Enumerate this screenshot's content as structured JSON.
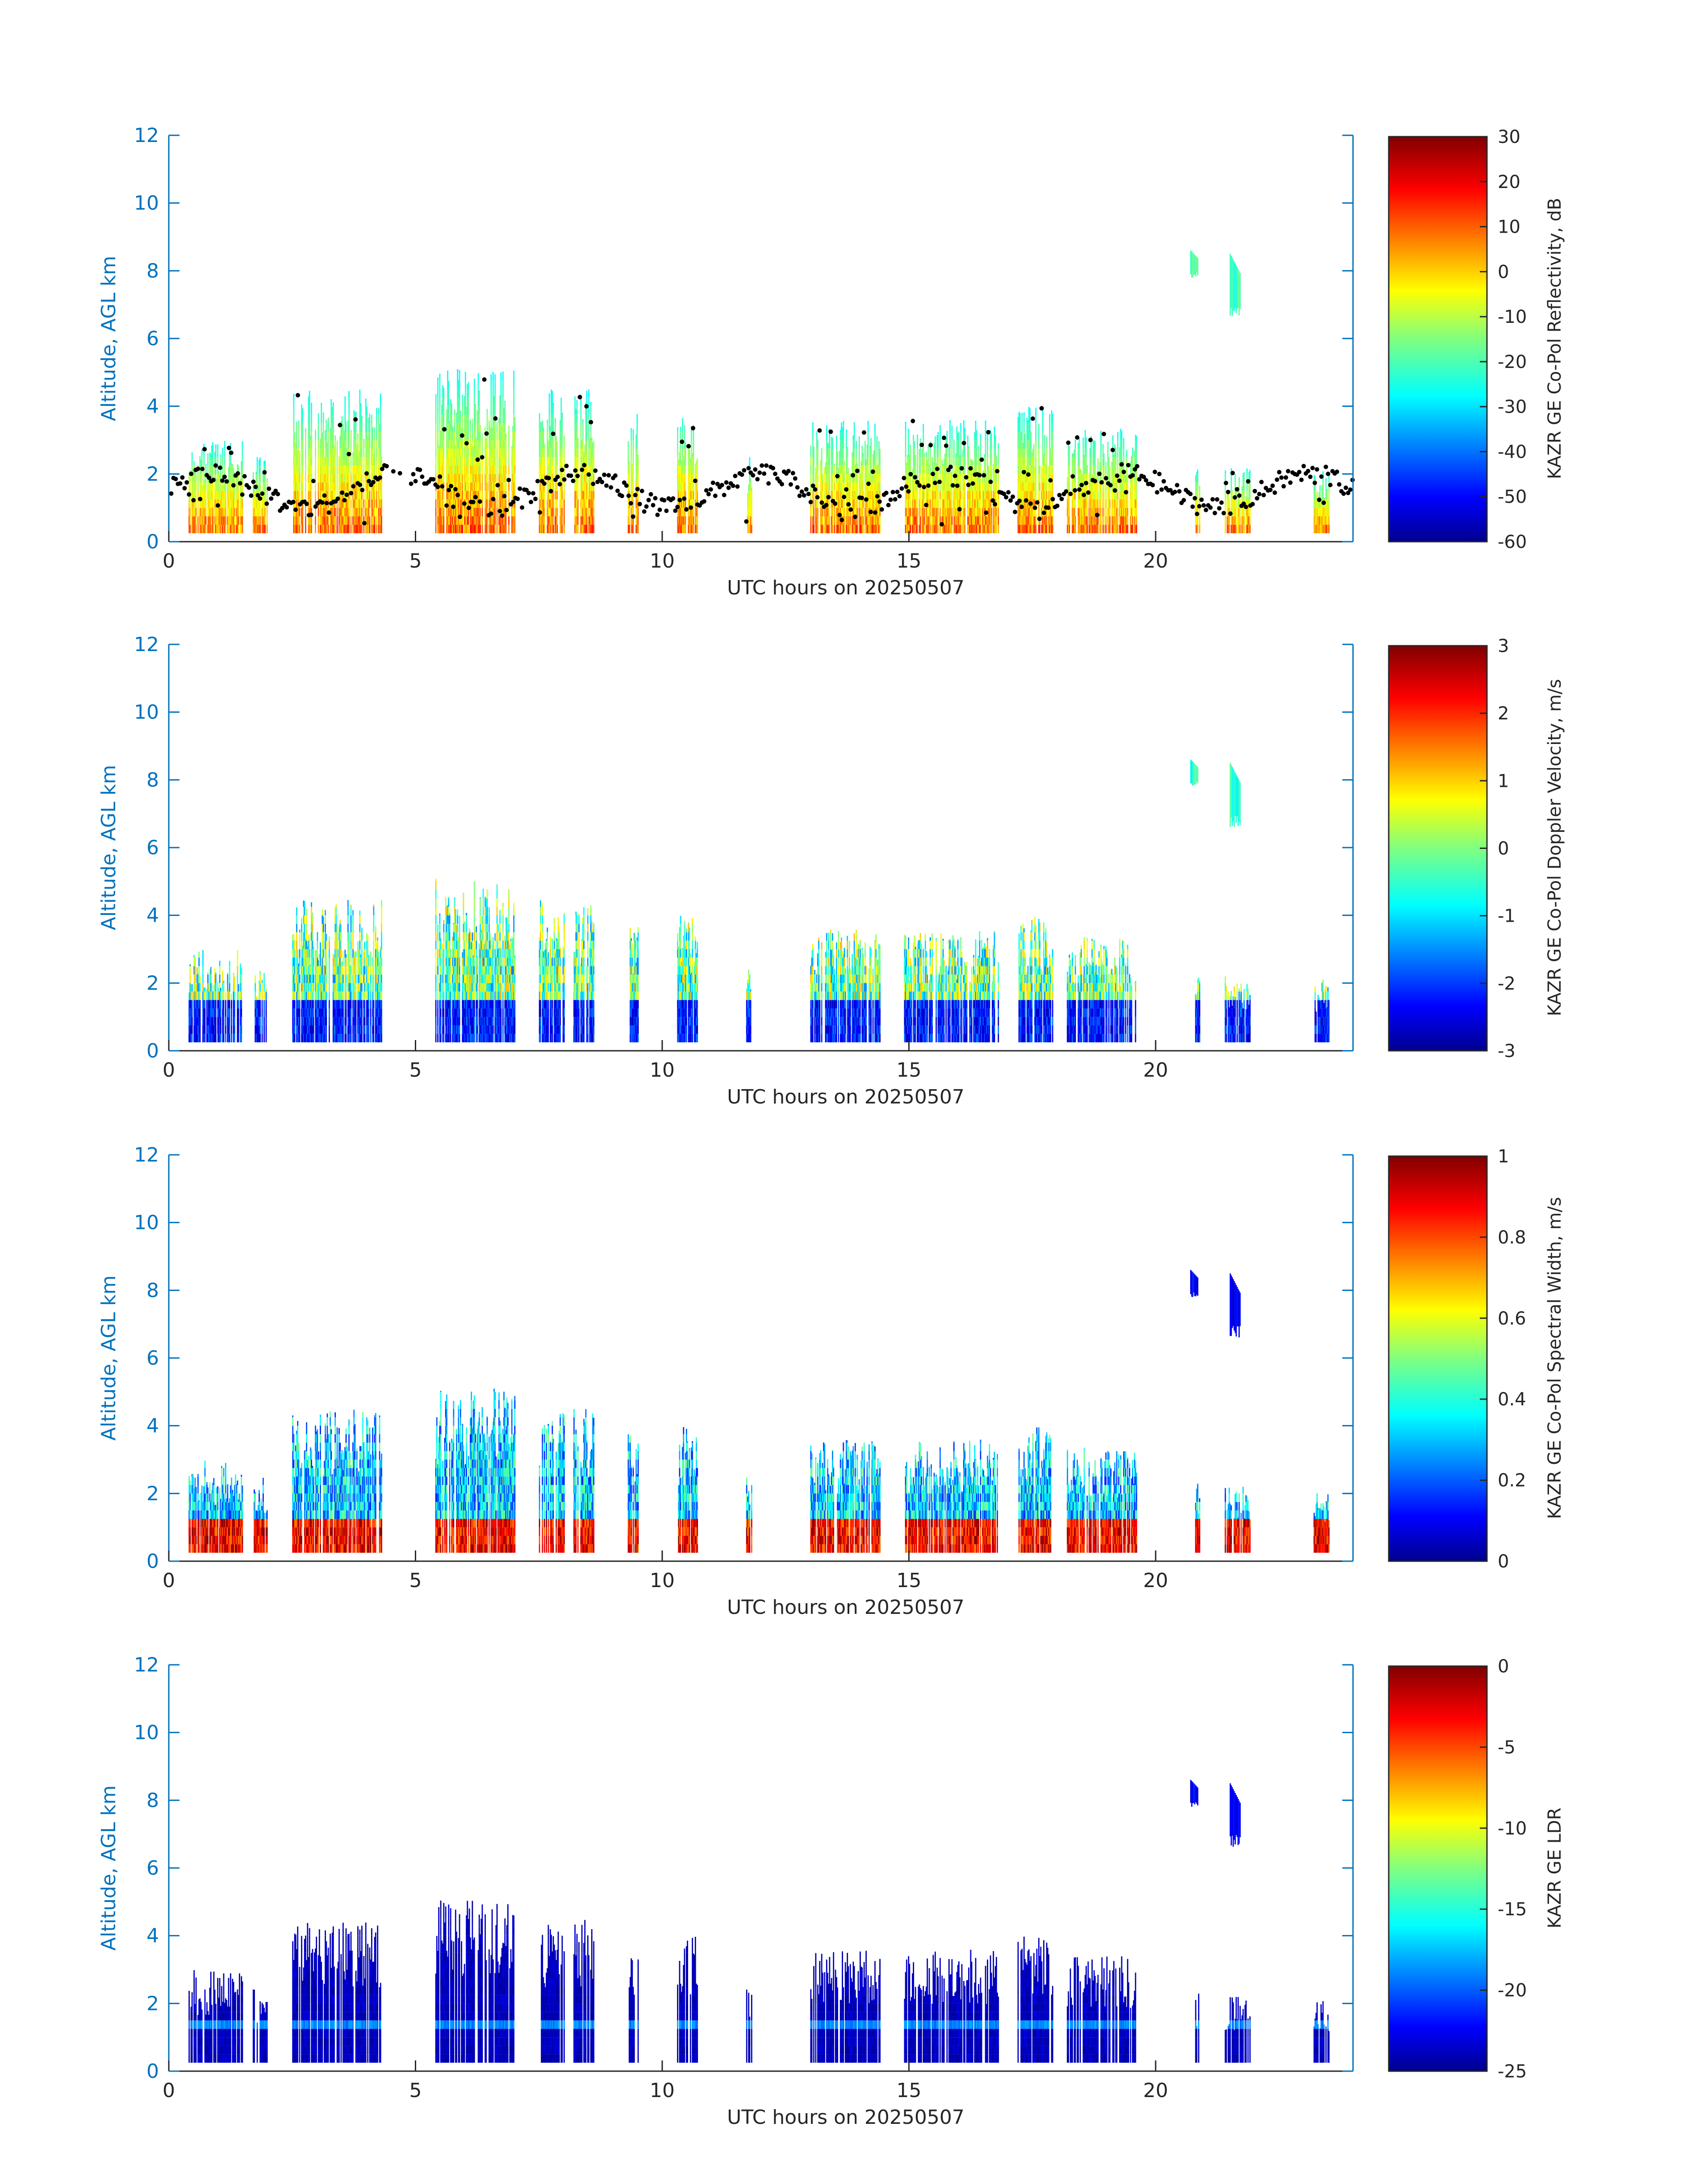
{
  "chart_data": [
    {
      "type": "heatmap",
      "title": "",
      "xlabel": "UTC hours on 20250507",
      "ylabel": "Altitude, AGL km",
      "xlim": [
        0,
        24
      ],
      "ylim": [
        0,
        12
      ],
      "xticks": [
        "0",
        "5",
        "10",
        "15",
        "20"
      ],
      "yticks": [
        "0",
        "2",
        "4",
        "6",
        "8",
        "10",
        "12"
      ],
      "colorbar": {
        "label": "KAZR GE Co-Pol Reflectivity, dB",
        "range": [
          -60,
          30
        ],
        "ticks": [
          "30",
          "20",
          "10",
          "0",
          "-10",
          "-20",
          "-30",
          "-40",
          "-50",
          "-60"
        ],
        "colormap": "jet"
      },
      "overlay": {
        "type": "scatter",
        "color": "#000000",
        "description_visible": "black dots (cloud base)"
      },
      "cloud_columns": [
        {
          "x0": 0.4,
          "x1": 1.5,
          "top": 3.0
        },
        {
          "x0": 1.7,
          "x1": 2.0,
          "top": 2.5
        },
        {
          "x0": 2.5,
          "x1": 4.3,
          "top": 4.5
        },
        {
          "x0": 5.4,
          "x1": 7.0,
          "top": 5.1
        },
        {
          "x0": 7.5,
          "x1": 8.0,
          "top": 4.5
        },
        {
          "x0": 8.2,
          "x1": 8.6,
          "top": 4.5
        },
        {
          "x0": 9.3,
          "x1": 9.5,
          "top": 3.8
        },
        {
          "x0": 10.3,
          "x1": 10.7,
          "top": 4.0
        },
        {
          "x0": 11.7,
          "x1": 11.8,
          "top": 2.5
        },
        {
          "x0": 13.0,
          "x1": 14.4,
          "top": 3.6
        },
        {
          "x0": 14.9,
          "x1": 16.8,
          "top": 3.6
        },
        {
          "x0": 17.2,
          "x1": 17.9,
          "top": 4.0
        },
        {
          "x0": 18.2,
          "x1": 19.6,
          "top": 3.4
        },
        {
          "x0": 20.8,
          "x1": 20.9,
          "top": 2.3
        },
        {
          "x0": 21.4,
          "x1": 21.9,
          "top": 2.2
        },
        {
          "x0": 23.2,
          "x1": 23.5,
          "top": 2.1
        }
      ],
      "upper_cloud": [
        {
          "x0": 20.7,
          "x1": 20.85,
          "bottom": 7.8,
          "top": 8.6
        },
        {
          "x0": 21.5,
          "x1": 21.7,
          "bottom": 6.6,
          "top": 8.5
        }
      ]
    },
    {
      "type": "heatmap",
      "title": "",
      "xlabel": "UTC hours on 20250507",
      "ylabel": "Altitude, AGL km",
      "xlim": [
        0,
        24
      ],
      "ylim": [
        0,
        12
      ],
      "xticks": [
        "0",
        "5",
        "10",
        "15",
        "20"
      ],
      "yticks": [
        "0",
        "2",
        "4",
        "6",
        "8",
        "10",
        "12"
      ],
      "colorbar": {
        "label": "KAZR GE Co-Pol Doppler Velocity, m/s",
        "range": [
          -3,
          3
        ],
        "ticks": [
          "3",
          "2",
          "1",
          "0",
          "-1",
          "-2",
          "-3"
        ],
        "colormap": "jet"
      }
    },
    {
      "type": "heatmap",
      "title": "",
      "xlabel": "UTC hours on 20250507",
      "ylabel": "Altitude, AGL km",
      "xlim": [
        0,
        24
      ],
      "ylim": [
        0,
        12
      ],
      "xticks": [
        "0",
        "5",
        "10",
        "15",
        "20"
      ],
      "yticks": [
        "0",
        "2",
        "4",
        "6",
        "8",
        "10",
        "12"
      ],
      "colorbar": {
        "label": "KAZR GE Co-Pol Spectral Width, m/s",
        "range": [
          0,
          1
        ],
        "ticks": [
          "1",
          "0.8",
          "0.6",
          "0.4",
          "0.2",
          "0"
        ],
        "colormap": "jet"
      }
    },
    {
      "type": "heatmap",
      "title": "",
      "xlabel": "UTC hours on 20250507",
      "ylabel": "Altitude, AGL km",
      "xlim": [
        0,
        24
      ],
      "ylim": [
        0,
        12
      ],
      "xticks": [
        "0",
        "5",
        "10",
        "15",
        "20"
      ],
      "yticks": [
        "0",
        "2",
        "4",
        "6",
        "8",
        "10",
        "12"
      ],
      "colorbar": {
        "label": "KAZR GE LDR",
        "range": [
          -25,
          0
        ],
        "ticks": [
          "0",
          "-5",
          "-10",
          "-15",
          "-20",
          "-25"
        ],
        "colormap": "jet"
      }
    }
  ]
}
